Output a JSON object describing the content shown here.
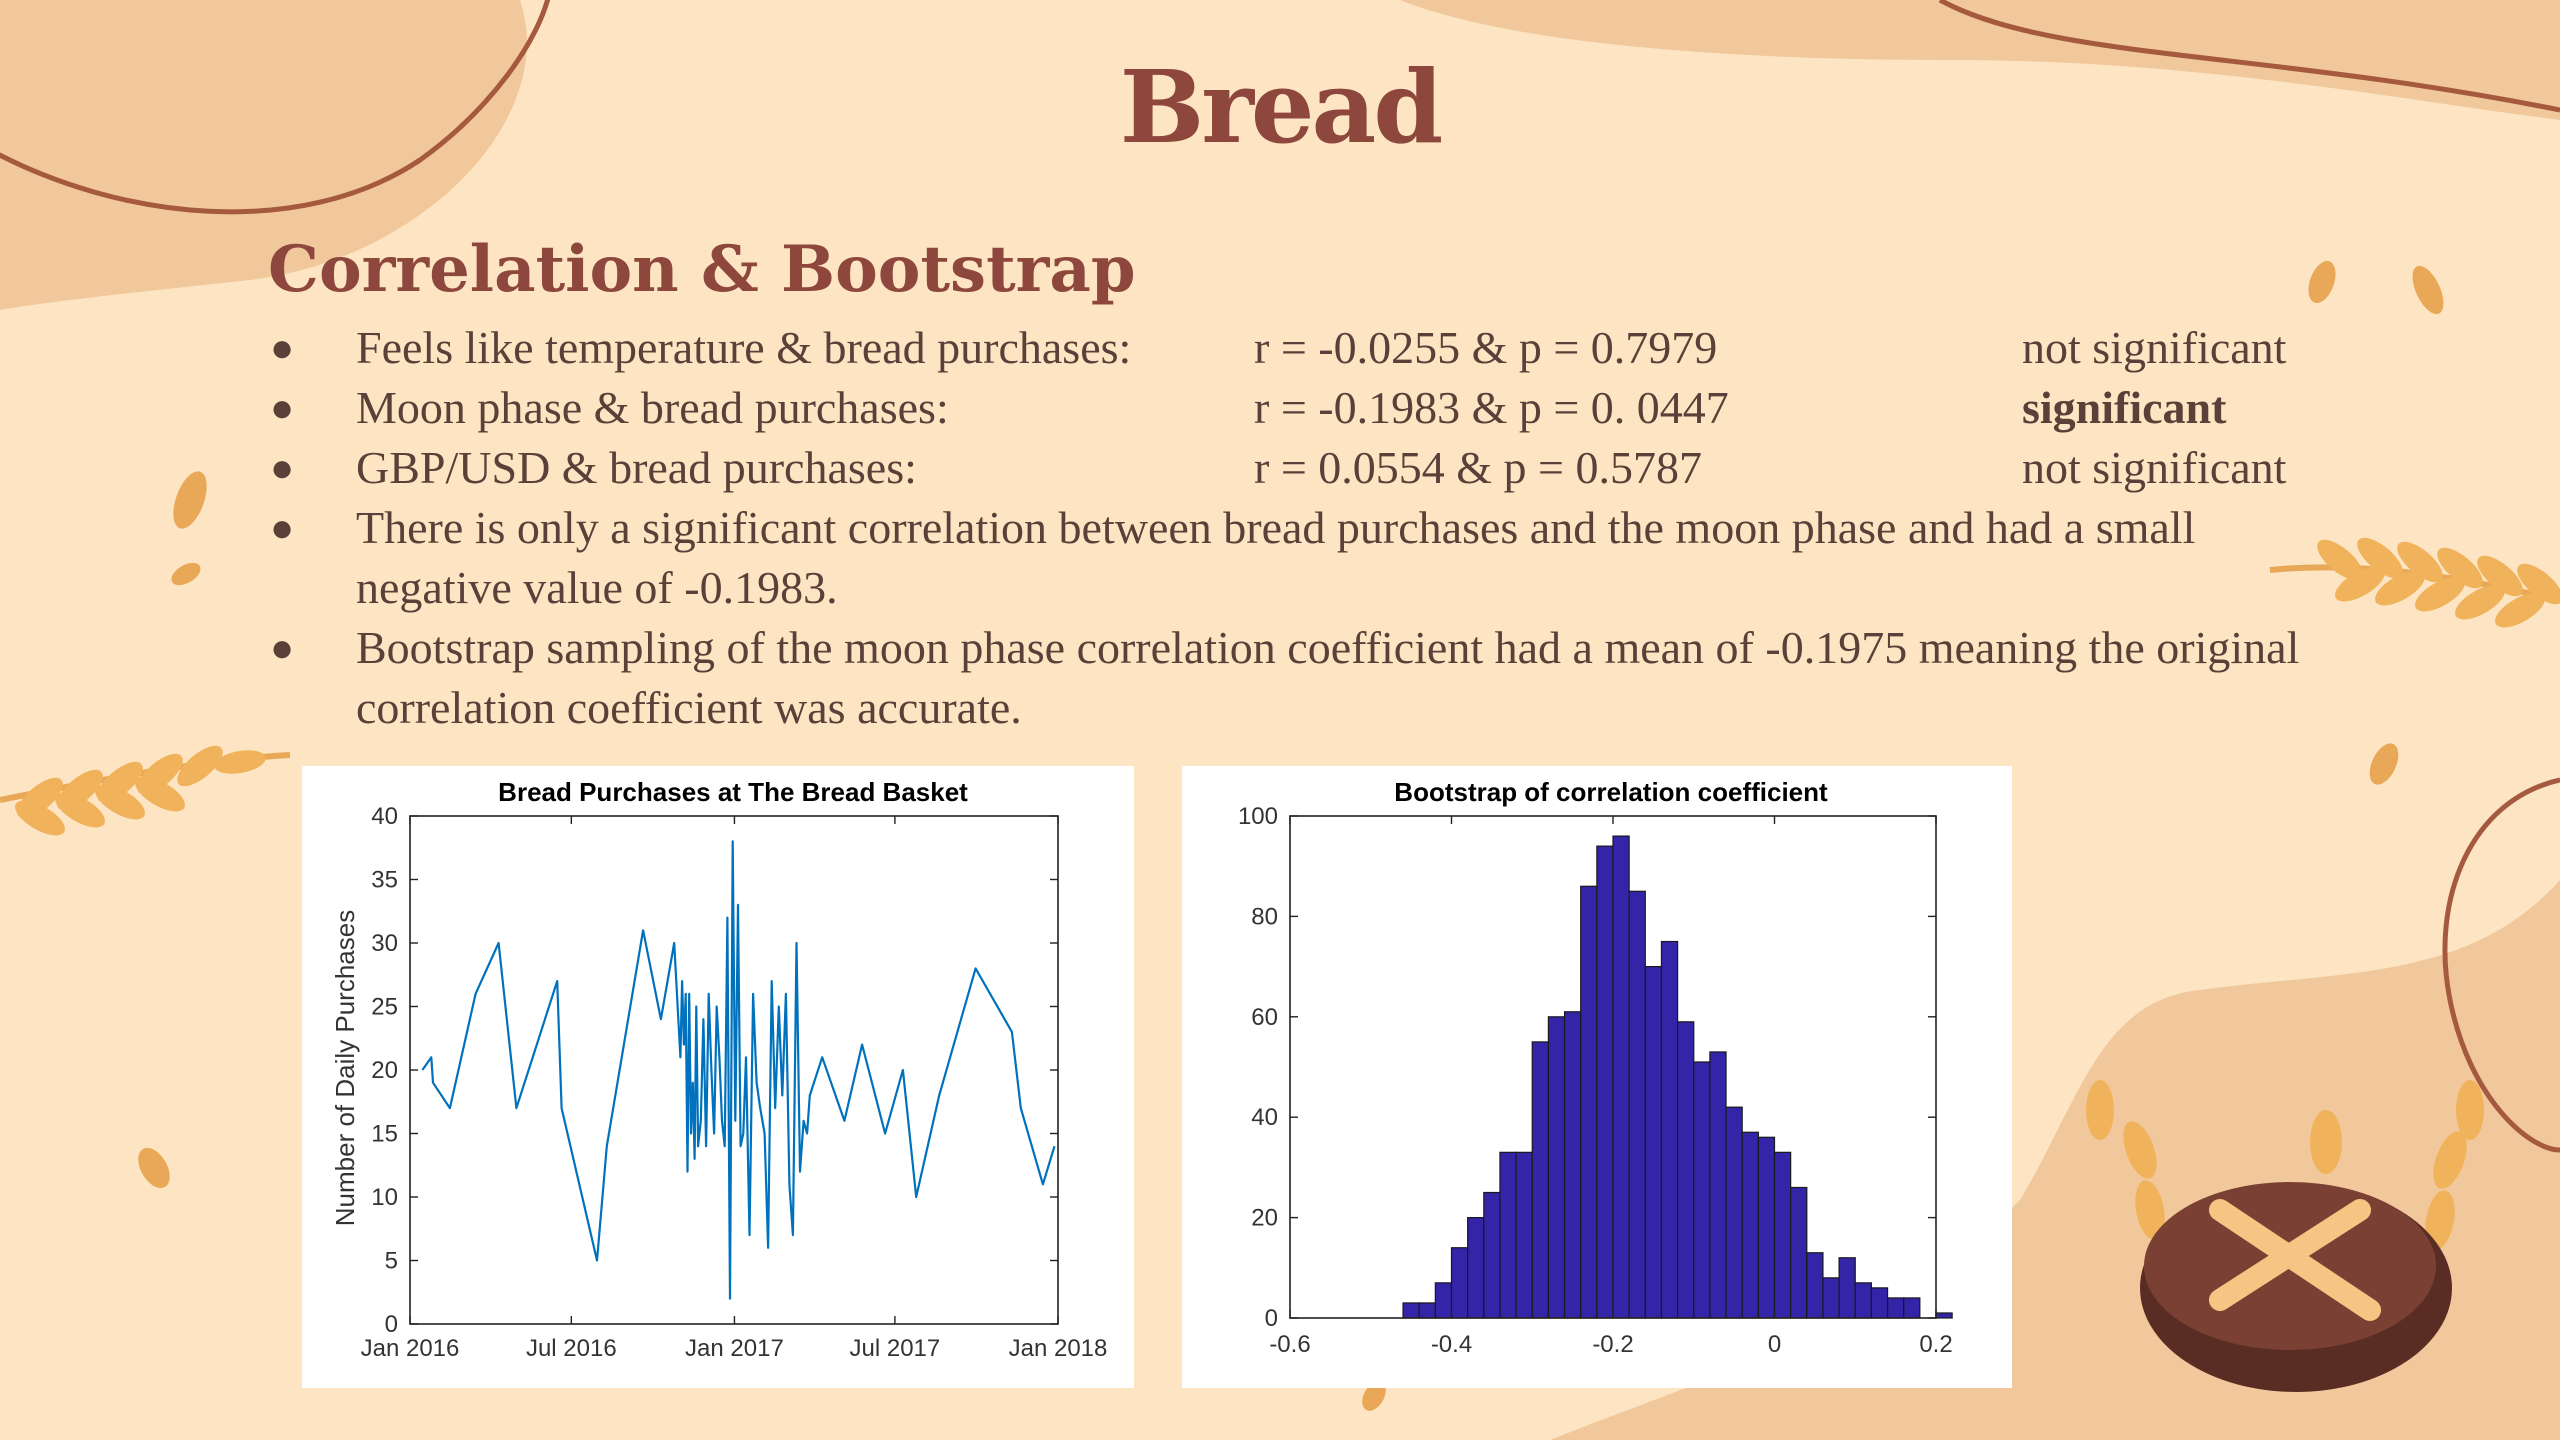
{
  "slide": {
    "title": "Bread",
    "section_title": "Correlation & Bootstrap",
    "bullets": [
      {
        "label": "Feels like temperature & bread purchases:",
        "stat": "r = -0.0255 & p = 0.7979",
        "result": "not significant",
        "bold": false
      },
      {
        "label": "Moon phase & bread purchases:",
        "stat": "r = -0.1983 & p = 0. 0447",
        "result": "significant",
        "bold": true
      },
      {
        "label": "GBP/USD & bread purchases:",
        "stat": "r = 0.0554 & p = 0.5787",
        "result": "not significant",
        "bold": false
      }
    ],
    "notes": [
      "There is only a significant correlation between bread purchases and the moon phase and had a small negative value of -0.1983.",
      "Bootstrap sampling of the moon phase correlation coefficient had a mean of -0.1975 meaning the original correlation coefficient was accurate."
    ],
    "bullet_symbol": "●"
  },
  "colors": {
    "background": "#fde5c4",
    "heading": "#8e473c",
    "body_text": "#5a4038",
    "blob": "#f1c89b",
    "line_series": "#0072bd",
    "histogram_fill": "#3324a8"
  },
  "chart_data": [
    {
      "type": "line",
      "title": "Bread Purchases at The Bread Basket",
      "xlabel": "",
      "ylabel": "Number of Daily Purchases",
      "x_ticks": [
        "Jan 2016",
        "Jul 2016",
        "Jan 2017",
        "Jul 2017",
        "Jan 2018"
      ],
      "x_tick_values": [
        "2016-01-01",
        "2016-07-01",
        "2017-01-01",
        "2017-07-01",
        "2018-01-01"
      ],
      "x_range": [
        "2016-01-01",
        "2018-01-01"
      ],
      "ylim": [
        0,
        40
      ],
      "y_ticks": [
        0,
        5,
        10,
        15,
        20,
        25,
        30,
        35,
        40
      ],
      "grid": false,
      "series": [
        {
          "x": [
            "2016-01-15",
            "2016-01-25",
            "2016-01-27",
            "2016-02-15",
            "2016-03-15",
            "2016-04-10",
            "2016-04-30",
            "2016-06-15",
            "2016-06-20",
            "2016-07-30",
            "2016-08-10",
            "2016-09-20",
            "2016-10-10",
            "2016-10-25",
            "2016-11-01",
            "2016-11-03",
            "2016-11-05",
            "2016-11-07",
            "2016-11-09",
            "2016-11-11",
            "2016-11-13",
            "2016-11-15",
            "2016-11-17",
            "2016-11-19",
            "2016-11-21",
            "2016-11-24",
            "2016-11-27",
            "2016-11-30",
            "2016-12-03",
            "2016-12-06",
            "2016-12-09",
            "2016-12-12",
            "2016-12-15",
            "2016-12-18",
            "2016-12-21",
            "2016-12-24",
            "2016-12-27",
            "2016-12-30",
            "2017-01-02",
            "2017-01-05",
            "2017-01-08",
            "2017-01-11",
            "2017-01-14",
            "2017-01-18",
            "2017-01-22",
            "2017-01-26",
            "2017-01-30",
            "2017-02-04",
            "2017-02-08",
            "2017-02-12",
            "2017-02-16",
            "2017-02-20",
            "2017-02-24",
            "2017-02-28",
            "2017-03-04",
            "2017-03-08",
            "2017-03-12",
            "2017-03-16",
            "2017-03-20",
            "2017-03-24",
            "2017-03-27",
            "2017-04-10",
            "2017-05-05",
            "2017-05-25",
            "2017-06-20",
            "2017-07-10",
            "2017-07-25",
            "2017-08-20",
            "2017-09-30",
            "2017-11-10",
            "2017-11-20",
            "2017-12-15",
            "2017-12-28"
          ],
          "y": [
            20,
            21,
            19,
            17,
            26,
            30,
            17,
            27,
            17,
            5,
            14,
            31,
            24,
            30,
            21,
            27,
            22,
            26,
            12,
            26,
            15,
            19,
            13,
            25,
            14,
            16,
            24,
            14,
            26,
            20,
            15,
            25,
            21,
            16,
            14,
            32,
            2,
            38,
            16,
            33,
            14,
            15,
            21,
            7,
            26,
            19,
            17,
            15,
            6,
            27,
            17,
            25,
            18,
            26,
            11,
            7,
            30,
            12,
            16,
            15,
            18,
            21,
            16,
            22,
            15,
            20,
            10,
            18,
            28,
            23,
            17,
            11,
            14
          ]
        }
      ]
    },
    {
      "type": "bar",
      "title": "Bootstrap of correlation coefficient",
      "xlabel": "",
      "ylabel": "",
      "xlim": [
        -0.6,
        0.2
      ],
      "ylim": [
        0,
        100
      ],
      "x_ticks": [
        "-0.6",
        "-0.4",
        "-0.2",
        "0",
        "0.2"
      ],
      "y_ticks": [
        0,
        20,
        40,
        60,
        80,
        100
      ],
      "grid": false,
      "bin_width": 0.02,
      "bin_edges_start": -0.46,
      "values": [
        3,
        3,
        7,
        14,
        20,
        25,
        33,
        33,
        55,
        60,
        61,
        86,
        94,
        96,
        85,
        70,
        75,
        59,
        51,
        53,
        42,
        37,
        36,
        33,
        26,
        13,
        8,
        12,
        7,
        6,
        4,
        4,
        0,
        1
      ]
    }
  ]
}
